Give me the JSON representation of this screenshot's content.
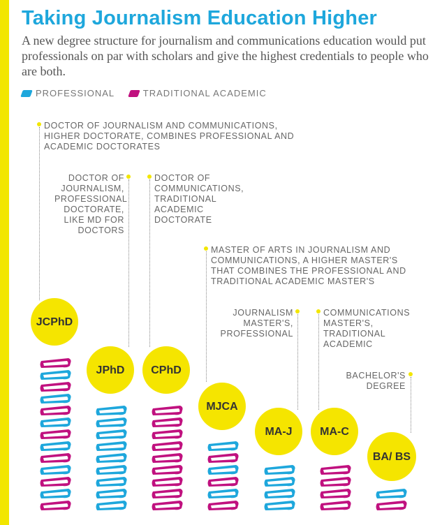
{
  "title": "Taking Journalism Education Higher",
  "subtitle": "A new degree structure for journalism and communications education would put professionals on par with scholars and give the highest credentials to people who are both.",
  "legend": {
    "professional": "PROFESSIONAL",
    "academic": "TRADITIONAL ACADEMIC"
  },
  "colors": {
    "professional": "#1ea7dc",
    "academic": "#c0117f",
    "accent_yellow": "#f2e600"
  },
  "degrees": [
    {
      "abbr": "JCPhD",
      "type": "combined",
      "books": 13,
      "description": "DOCTOR OF JOURNALISM AND COMMUNICATIONS, HIGHER DOCTORATE, COMBINES PROFESSIONAL AND ACADEMIC DOCTORATES"
    },
    {
      "abbr": "JPhD",
      "type": "professional",
      "books": 9,
      "description": "DOCTOR OF JOURNALISM, PROFESSIONAL DOCTORATE, LIKE MD FOR DOCTORS"
    },
    {
      "abbr": "CPhD",
      "type": "academic",
      "books": 9,
      "description": "DOCTOR OF COMMUNICATIONS, TRADITIONAL ACADEMIC DOCTORATE"
    },
    {
      "abbr": "MJCA",
      "type": "combined",
      "books": 6,
      "description": "MASTER OF ARTS IN JOURNALISM AND COMMUNICATIONS, A HIGHER MASTER'S THAT COMBINES THE PROFESSIONAL AND TRADITIONAL ACADEMIC MASTER'S"
    },
    {
      "abbr": "MA-J",
      "type": "professional",
      "books": 4,
      "description": "JOURNALISM MASTER'S, PROFESSIONAL"
    },
    {
      "abbr": "MA-C",
      "type": "academic",
      "books": 4,
      "description": "COMMUNICATIONS MASTER'S, TRADITIONAL ACADEMIC"
    },
    {
      "abbr": "BA/ BS",
      "type": "combined",
      "books": 2,
      "description": "BACHELOR'S DEGREE"
    }
  ]
}
